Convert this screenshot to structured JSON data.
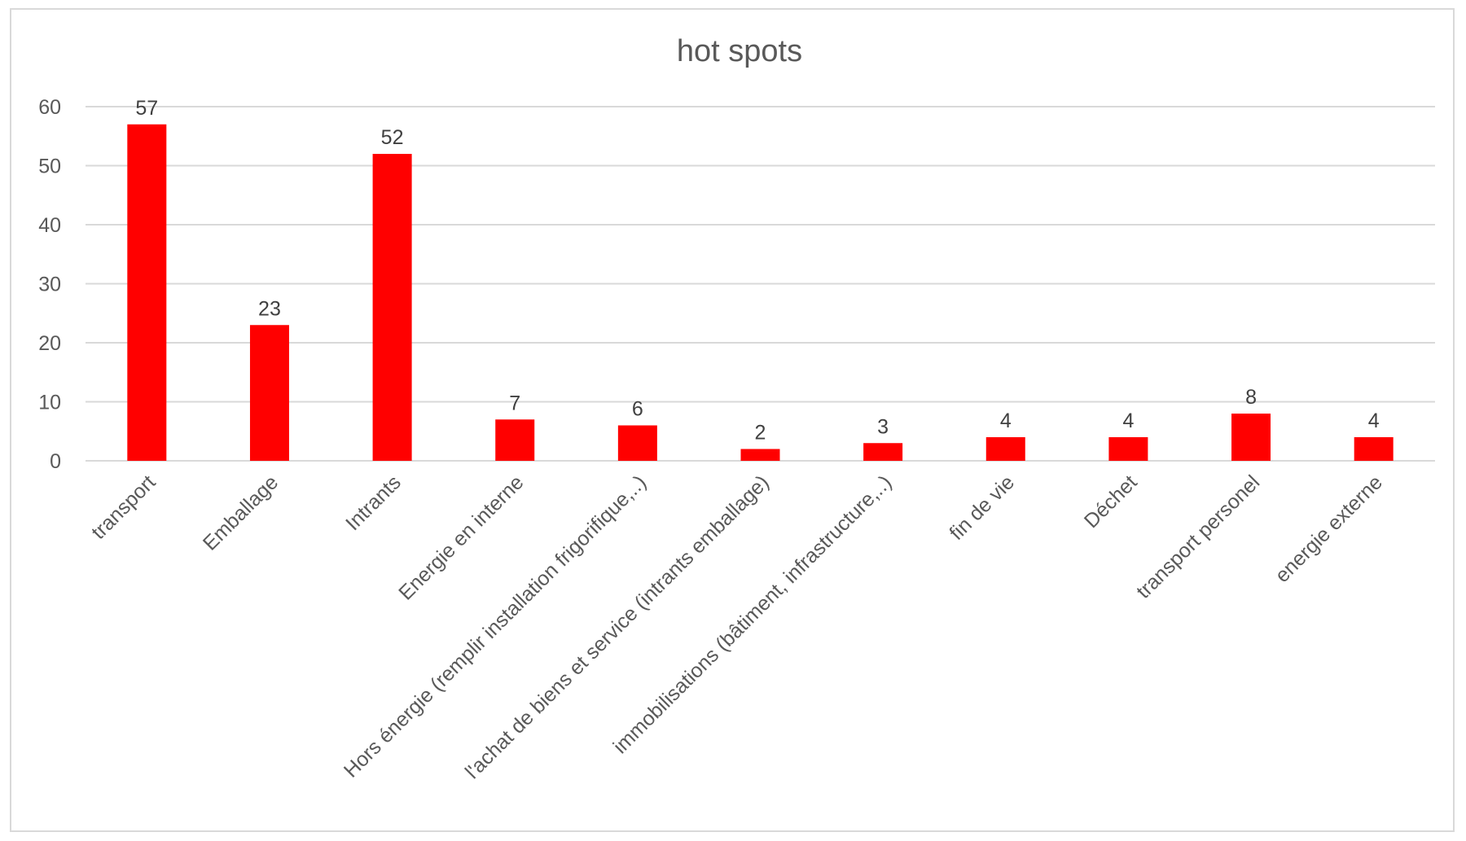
{
  "chart_data": {
    "type": "bar",
    "title": "hot spots",
    "categories": [
      "transport",
      "Emballage",
      "Intrants",
      "Energie en interne",
      "Hors énergie (remplir installation frigorifique,..)",
      "l'achat de biens et service (intrants emballage)",
      "immobilisations (bâtiment, infrastructure,..)",
      "fin de vie",
      "Déchet",
      "transport personel",
      "energie externe"
    ],
    "values": [
      57,
      23,
      52,
      7,
      6,
      2,
      3,
      4,
      4,
      8,
      4
    ],
    "y_ticks": [
      "0",
      "10",
      "20",
      "30",
      "40",
      "50",
      "60"
    ],
    "ylim": [
      0,
      60
    ],
    "xlabel": "",
    "ylabel": "",
    "grid": true,
    "legend": "none",
    "data_labels": true,
    "bar_color": "#ff0000",
    "gridline_color": "#d9d9d9",
    "text_color": "#595959"
  }
}
